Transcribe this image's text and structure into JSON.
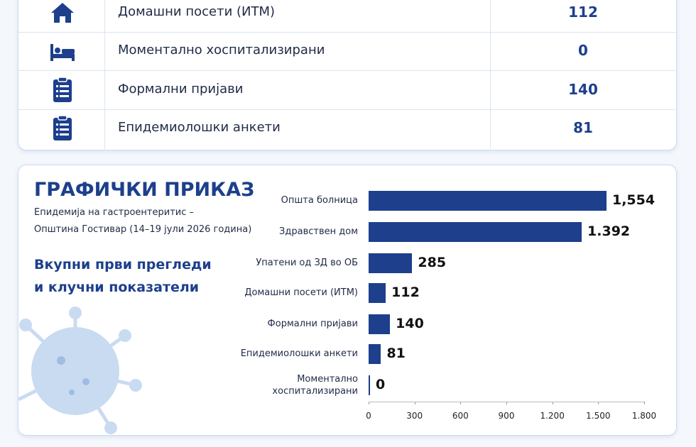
{
  "table": {
    "rows": [
      [
        "Домашни посети (ИТМ)",
        112
      ],
      [
        "Моментално хоспитализирани",
        0
      ],
      [
        "Формални пријави",
        140
      ],
      [
        "Епидемиолошки анкети",
        81
      ]
    ]
  },
  "chart_data": {
    "type": "bar",
    "orientation": "horizontal",
    "title": "ГРАФИЧКИ ПРИКАЗ",
    "subtitle": [
      "Епидемија на гастроентеритис –",
      "Општина Гостивар (14–19 јули 2026 година)"
    ],
    "heading": [
      "Вкупни први прегледи",
      "и клучни показатели"
    ],
    "categories": [
      "Општа болница",
      "Здравствен дом",
      "Упатени од ЗД во ОБ",
      "Домашни посети (ИТМ)",
      "Формални пријави",
      "Епидемиолошки анкети",
      "Моментално хоспитализирани"
    ],
    "values": [
      1554,
      1392,
      285,
      112,
      140,
      81,
      0
    ],
    "value_labels": [
      "1,554",
      "1.392",
      "285",
      "112",
      "140",
      "81",
      "0"
    ],
    "color": "#1d3f8c",
    "xlim": [
      0,
      1800
    ],
    "xticks": [
      0,
      300,
      600,
      900,
      {
        "value": 1200,
        "label": "1.200"
      },
      {
        "value": 1500,
        "label": "1.500"
      },
      {
        "value": 1800,
        "label": "1.800"
      }
    ]
  }
}
